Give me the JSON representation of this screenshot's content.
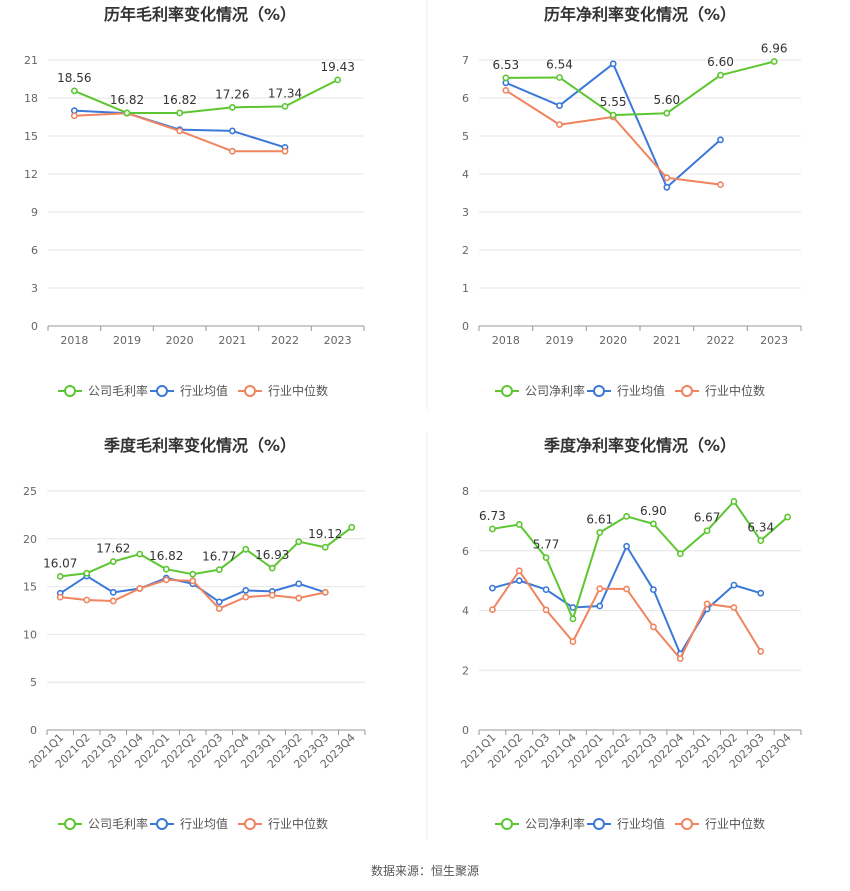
{
  "source_text": "数据来源：恒生聚源",
  "colors": {
    "company": "#5cc631",
    "industry_avg": "#3b78d8",
    "industry_median": "#f0845f",
    "grid": "#e6e6e6",
    "axis": "#999999",
    "divider": "#eeeeee"
  },
  "chart_data": [
    {
      "type": "line",
      "title": "历年毛利率变化情况（%）",
      "categories": [
        "2018",
        "2019",
        "2020",
        "2021",
        "2022",
        "2023"
      ],
      "ylim": [
        0,
        21
      ],
      "yticks": [
        0,
        3,
        6,
        9,
        12,
        15,
        18,
        21
      ],
      "rotate_xticks": false,
      "series": [
        {
          "name": "公司毛利率",
          "key": "company",
          "values": [
            18.56,
            16.82,
            16.82,
            17.26,
            17.34,
            19.43
          ],
          "labels": [
            "18.56",
            "16.82",
            "16.82",
            "17.26",
            "17.34",
            "19.43"
          ]
        },
        {
          "name": "行业均值",
          "key": "industry_avg",
          "values": [
            17.0,
            16.8,
            15.5,
            15.4,
            14.1,
            null
          ]
        },
        {
          "name": "行业中位数",
          "key": "industry_median",
          "values": [
            16.6,
            16.8,
            15.4,
            13.8,
            13.8,
            null
          ]
        }
      ],
      "legend": "bottom"
    },
    {
      "type": "line",
      "title": "历年净利率变化情况（%）",
      "categories": [
        "2018",
        "2019",
        "2020",
        "2021",
        "2022",
        "2023"
      ],
      "ylim": [
        0,
        7
      ],
      "yticks": [
        0,
        1,
        2,
        3,
        4,
        5,
        6,
        7
      ],
      "rotate_xticks": false,
      "series": [
        {
          "name": "公司净利率",
          "key": "company",
          "values": [
            6.53,
            6.54,
            5.55,
            5.6,
            6.6,
            6.96
          ],
          "labels": [
            "6.53",
            "6.54",
            "5.55",
            "5.60",
            "6.60",
            "6.96"
          ]
        },
        {
          "name": "行业均值",
          "key": "industry_avg",
          "values": [
            6.4,
            5.8,
            6.9,
            3.65,
            4.9,
            null
          ]
        },
        {
          "name": "行业中位数",
          "key": "industry_median",
          "values": [
            6.2,
            5.3,
            5.5,
            3.9,
            3.72,
            null
          ]
        }
      ],
      "legend": "bottom"
    },
    {
      "type": "line",
      "title": "季度毛利率变化情况（%）",
      "categories": [
        "2021Q1",
        "2021Q2",
        "2021Q3",
        "2021Q4",
        "2022Q1",
        "2022Q2",
        "2022Q3",
        "2022Q4",
        "2023Q1",
        "2023Q2",
        "2023Q3",
        "2023Q4"
      ],
      "ylim": [
        0,
        25
      ],
      "yticks": [
        0,
        5,
        10,
        15,
        20,
        25
      ],
      "rotate_xticks": true,
      "series": [
        {
          "name": "公司毛利率",
          "key": "company",
          "values": [
            16.07,
            16.4,
            17.62,
            18.4,
            16.82,
            16.3,
            16.77,
            18.9,
            16.93,
            19.7,
            19.12,
            21.2
          ],
          "labels": [
            "16.07",
            null,
            "17.62",
            null,
            "16.82",
            null,
            "16.77",
            null,
            "16.93",
            null,
            "19.12",
            null
          ]
        },
        {
          "name": "行业均值",
          "key": "industry_avg",
          "values": [
            14.3,
            16.1,
            14.4,
            14.8,
            15.9,
            15.3,
            13.4,
            14.6,
            14.5,
            15.3,
            14.4,
            null
          ]
        },
        {
          "name": "行业中位数",
          "key": "industry_median",
          "values": [
            13.9,
            13.6,
            13.5,
            14.8,
            15.7,
            15.6,
            12.7,
            13.9,
            14.1,
            13.8,
            14.4,
            null
          ]
        }
      ],
      "legend": "bottom"
    },
    {
      "type": "line",
      "title": "季度净利率变化情况（%）",
      "categories": [
        "2021Q1",
        "2021Q2",
        "2021Q3",
        "2021Q4",
        "2022Q1",
        "2022Q2",
        "2022Q3",
        "2022Q4",
        "2023Q1",
        "2023Q2",
        "2023Q3",
        "2023Q4"
      ],
      "ylim": [
        0,
        8
      ],
      "yticks": [
        0,
        2,
        4,
        6,
        8
      ],
      "rotate_xticks": true,
      "series": [
        {
          "name": "公司净利率",
          "key": "company",
          "values": [
            6.73,
            6.88,
            5.77,
            3.72,
            6.61,
            7.15,
            6.9,
            5.9,
            6.67,
            7.65,
            6.34,
            7.13
          ],
          "labels": [
            "6.73",
            null,
            "5.77",
            null,
            "6.61",
            null,
            "6.90",
            null,
            "6.67",
            null,
            "6.34",
            null
          ]
        },
        {
          "name": "行业均值",
          "key": "industry_avg",
          "values": [
            4.75,
            5.0,
            4.7,
            4.1,
            4.15,
            6.15,
            4.7,
            2.55,
            4.05,
            4.85,
            4.58,
            null
          ]
        },
        {
          "name": "行业中位数",
          "key": "industry_median",
          "values": [
            4.03,
            5.33,
            4.02,
            2.96,
            4.73,
            4.72,
            3.45,
            2.39,
            4.22,
            4.1,
            2.63,
            null
          ]
        }
      ],
      "legend": "bottom"
    }
  ]
}
